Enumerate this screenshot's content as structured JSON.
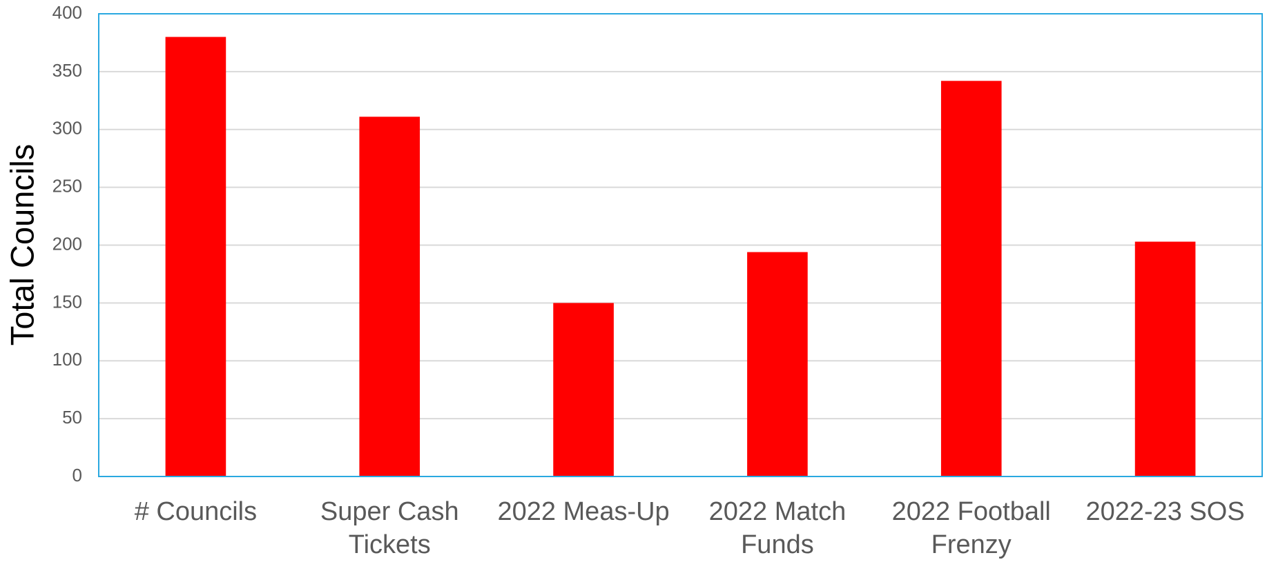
{
  "chart_data": {
    "type": "bar",
    "y_label": "Total Councils",
    "categories": [
      "# Councils",
      "Super Cash Tickets",
      "2022 Meas-Up",
      "2022 Match Funds",
      "2022 Football Frenzy",
      "2022-23 SOS"
    ],
    "values": [
      380,
      311,
      150,
      194,
      342,
      203
    ],
    "color": "#ff0000",
    "ylim": [
      0,
      400
    ],
    "yticks": [
      0,
      50,
      100,
      150,
      200,
      250,
      300,
      350,
      400
    ],
    "grid": true
  }
}
